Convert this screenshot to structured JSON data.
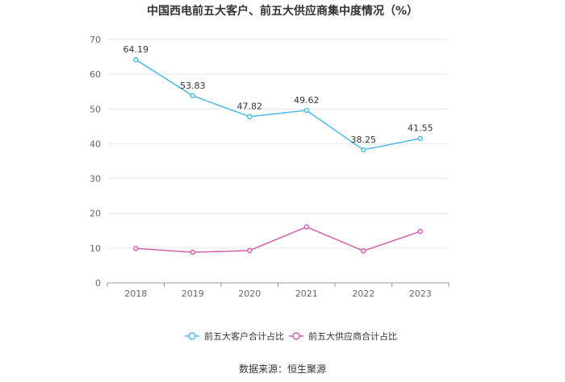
{
  "chart_data": {
    "type": "line",
    "title": "中国西电前五大客户、前五大供应商集中度情况（%）",
    "categories": [
      "2018",
      "2019",
      "2020",
      "2021",
      "2022",
      "2023"
    ],
    "series": [
      {
        "name": "前五大客户合计占比",
        "values": [
          64.19,
          53.83,
          47.82,
          49.62,
          38.25,
          41.55
        ],
        "color": "#4cb9e8",
        "show_labels": true
      },
      {
        "name": "前五大供应商合计占比",
        "values": [
          9.9,
          8.8,
          9.3,
          16.1,
          9.2,
          14.8
        ],
        "color": "#d45fac",
        "show_labels": false
      }
    ],
    "y_ticks": [
      "0",
      "10",
      "20",
      "30",
      "40",
      "50",
      "60",
      "70"
    ],
    "ylim": [
      0,
      70
    ],
    "grid": true,
    "legend_position": "bottom"
  },
  "source": "数据来源：恒生聚源"
}
